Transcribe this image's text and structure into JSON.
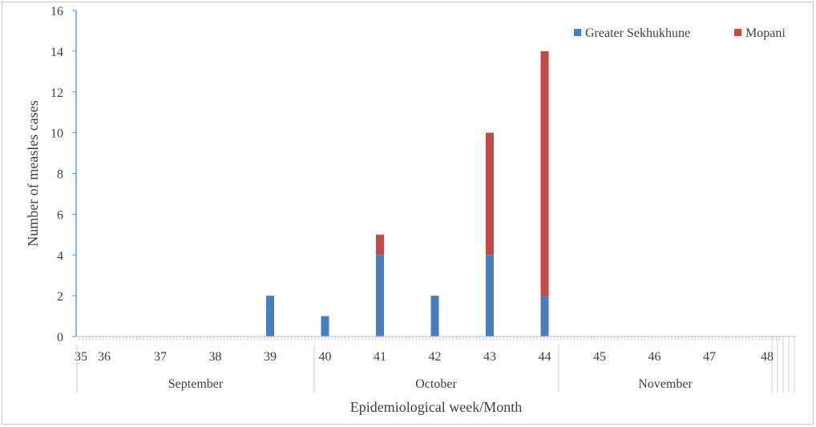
{
  "chart_data": {
    "type": "bar",
    "stacked": true,
    "title": "",
    "xlabel": "Epidemiological week/Month",
    "ylabel": "Number of measles cases",
    "ylim": [
      0,
      16
    ],
    "yticks": [
      "0",
      "2",
      "4",
      "6",
      "8",
      "10",
      "12",
      "14",
      "16"
    ],
    "categories": [
      "35",
      "36",
      "37",
      "38",
      "39",
      "40",
      "41",
      "42",
      "43",
      "44",
      "45",
      "46",
      "47",
      "48"
    ],
    "series": [
      {
        "name": "Greater Sekhukhune",
        "color": "#4a7ebb",
        "values": [
          0,
          0,
          0,
          0,
          2,
          1,
          4,
          2,
          4,
          2,
          0,
          0,
          0,
          0
        ]
      },
      {
        "name": "Mopani",
        "color": "#be4b48",
        "values": [
          0,
          0,
          0,
          0,
          0,
          0,
          1,
          0,
          6,
          12,
          0,
          0,
          0,
          0
        ]
      }
    ],
    "months": [
      "September",
      "October",
      "November"
    ],
    "legend_position": "top-right",
    "grid": false
  }
}
